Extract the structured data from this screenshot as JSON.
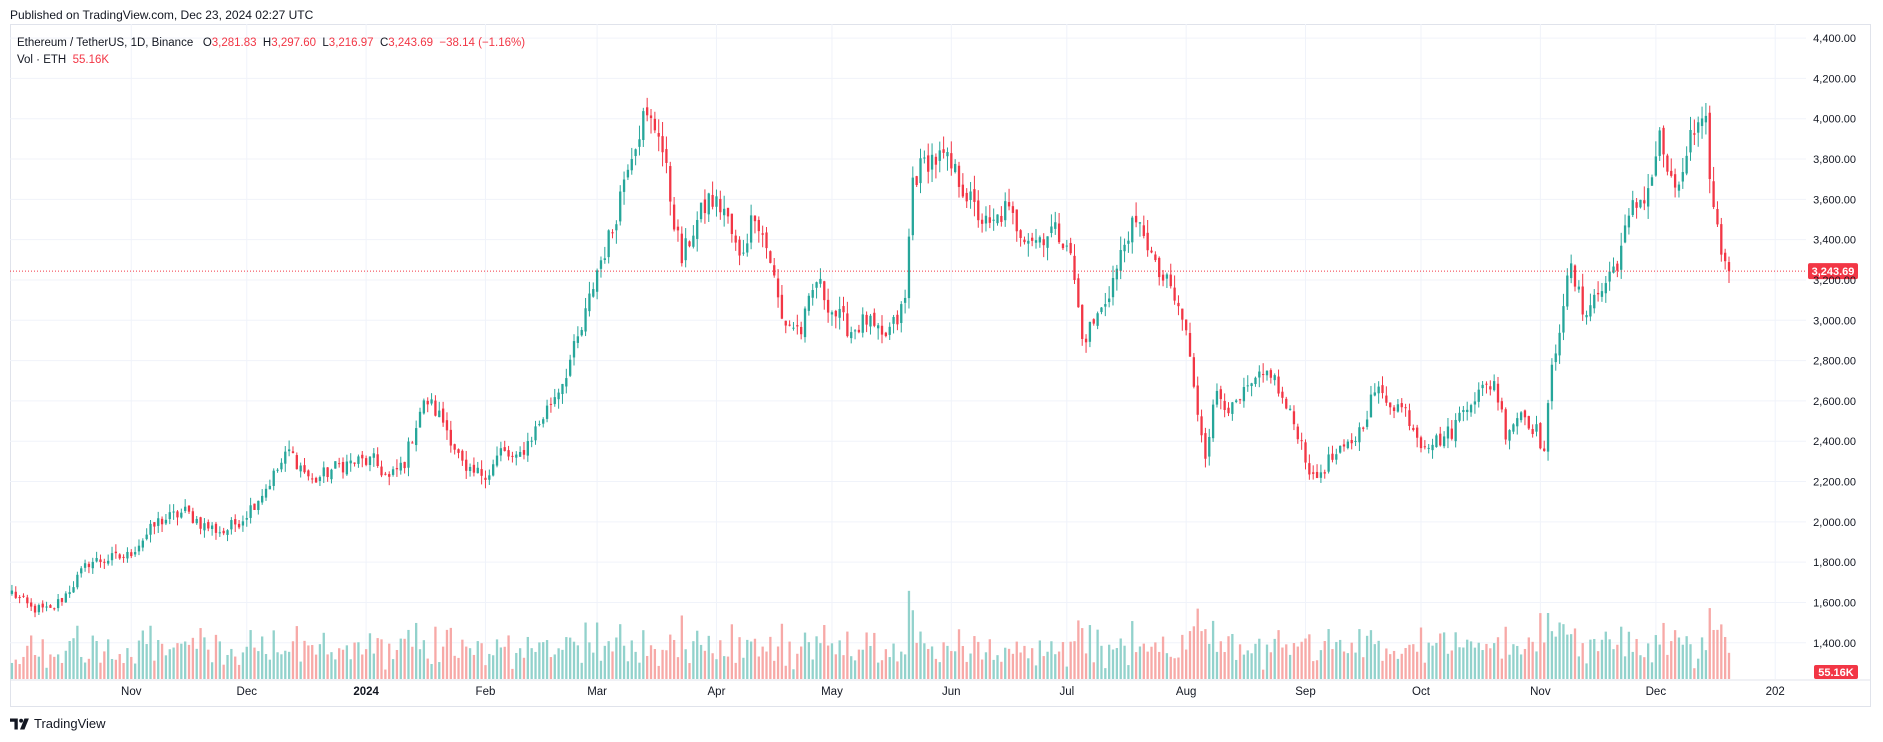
{
  "header": {
    "published": "Published on TradingView.com, Dec 23, 2024 02:27 UTC"
  },
  "legend": {
    "symbol": "Ethereum / TetherUS, 1D, Binance",
    "o_label": "O",
    "o": "3,281.83",
    "h_label": "H",
    "h": "3,297.60",
    "l_label": "L",
    "l": "3,216.97",
    "c_label": "C",
    "c": "3,243.69",
    "change": "−38.14 (−1.16%)",
    "vol_label": "Vol · ETH",
    "vol": "55.16K"
  },
  "footer": {
    "brand": "TradingView",
    "logo_icon": "tradingview-logo-icon"
  },
  "colors": {
    "up": "#26a69a",
    "down": "#f23645",
    "vol_up": "#92d2cc",
    "vol_down": "#f7a9a7",
    "grid": "#f0f3fa",
    "text": "#131722"
  },
  "chart_data": {
    "type": "candlestick",
    "last_price": 3243.69,
    "last_price_label": "3,243.69",
    "last_volume_label": "55.16K",
    "y_ticks": [
      1400,
      1600,
      1800,
      2000,
      2200,
      2400,
      2600,
      2800,
      3000,
      3200,
      3400,
      3600,
      3800,
      4000,
      4200,
      4400
    ],
    "y_tick_labels": [
      "1,400.00",
      "1,600.00",
      "1,800.00",
      "2,000.00",
      "2,200.00",
      "2,400.00",
      "2,600.00",
      "2,800.00",
      "3,000.00",
      "3,200.00",
      "3,400.00",
      "3,600.00",
      "3,800.00",
      "4,000.00",
      "4,200.00",
      "4,400.00"
    ],
    "ylim": [
      1250,
      4450
    ],
    "x_ticks": [
      {
        "label": "Nov",
        "day": 31,
        "bold": false
      },
      {
        "label": "Dec",
        "day": 61,
        "bold": false
      },
      {
        "label": "2024",
        "day": 92,
        "bold": true
      },
      {
        "label": "Feb",
        "day": 123,
        "bold": false
      },
      {
        "label": "Mar",
        "day": 152,
        "bold": false
      },
      {
        "label": "Apr",
        "day": 183,
        "bold": false
      },
      {
        "label": "May",
        "day": 213,
        "bold": false
      },
      {
        "label": "Jun",
        "day": 244,
        "bold": false
      },
      {
        "label": "Jul",
        "day": 274,
        "bold": false
      },
      {
        "label": "Aug",
        "day": 305,
        "bold": false
      },
      {
        "label": "Sep",
        "day": 336,
        "bold": false
      },
      {
        "label": "Oct",
        "day": 366,
        "bold": false
      },
      {
        "label": "Nov",
        "day": 397,
        "bold": false
      },
      {
        "label": "Dec",
        "day": 427,
        "bold": false
      },
      {
        "label": "202",
        "day": 458,
        "bold": false
      }
    ],
    "anchors": [
      [
        0,
        1650
      ],
      [
        5,
        1570
      ],
      [
        10,
        1560
      ],
      [
        14,
        1640
      ],
      [
        20,
        1800
      ],
      [
        30,
        1830
      ],
      [
        38,
        2000
      ],
      [
        45,
        2050
      ],
      [
        50,
        1980
      ],
      [
        55,
        1950
      ],
      [
        60,
        2020
      ],
      [
        66,
        2170
      ],
      [
        72,
        2350
      ],
      [
        78,
        2200
      ],
      [
        85,
        2280
      ],
      [
        90,
        2300
      ],
      [
        94,
        2300
      ],
      [
        98,
        2210
      ],
      [
        102,
        2300
      ],
      [
        106,
        2550
      ],
      [
        108,
        2600
      ],
      [
        112,
        2500
      ],
      [
        114,
        2420
      ],
      [
        118,
        2230
      ],
      [
        124,
        2250
      ],
      [
        127,
        2350
      ],
      [
        131,
        2300
      ],
      [
        137,
        2490
      ],
      [
        143,
        2700
      ],
      [
        148,
        2950
      ],
      [
        152,
        3250
      ],
      [
        156,
        3450
      ],
      [
        160,
        3800
      ],
      [
        164,
        4000
      ],
      [
        168,
        3950
      ],
      [
        172,
        3500
      ],
      [
        174,
        3300
      ],
      [
        177,
        3450
      ],
      [
        181,
        3600
      ],
      [
        185,
        3550
      ],
      [
        189,
        3300
      ],
      [
        193,
        3550
      ],
      [
        197,
        3300
      ],
      [
        200,
        3000
      ],
      [
        205,
        2950
      ],
      [
        209,
        3200
      ],
      [
        213,
        3050
      ],
      [
        218,
        2950
      ],
      [
        222,
        3000
      ],
      [
        226,
        2900
      ],
      [
        230,
        3000
      ],
      [
        232,
        3100
      ],
      [
        234,
        3700
      ],
      [
        238,
        3800
      ],
      [
        242,
        3800
      ],
      [
        246,
        3700
      ],
      [
        250,
        3550
      ],
      [
        254,
        3450
      ],
      [
        258,
        3550
      ],
      [
        262,
        3450
      ],
      [
        266,
        3400
      ],
      [
        270,
        3450
      ],
      [
        274,
        3400
      ],
      [
        276,
        3200
      ],
      [
        278,
        2900
      ],
      [
        283,
        3050
      ],
      [
        287,
        3250
      ],
      [
        290,
        3450
      ],
      [
        294,
        3450
      ],
      [
        297,
        3250
      ],
      [
        301,
        3150
      ],
      [
        305,
        2950
      ],
      [
        307,
        2650
      ],
      [
        310,
        2350
      ],
      [
        313,
        2650
      ],
      [
        317,
        2550
      ],
      [
        321,
        2650
      ],
      [
        324,
        2700
      ],
      [
        327,
        2750
      ],
      [
        330,
        2600
      ],
      [
        334,
        2450
      ],
      [
        338,
        2200
      ],
      [
        342,
        2300
      ],
      [
        346,
        2350
      ],
      [
        350,
        2450
      ],
      [
        354,
        2650
      ],
      [
        358,
        2600
      ],
      [
        362,
        2550
      ],
      [
        366,
        2400
      ],
      [
        370,
        2400
      ],
      [
        374,
        2450
      ],
      [
        378,
        2600
      ],
      [
        382,
        2650
      ],
      [
        385,
        2700
      ],
      [
        388,
        2450
      ],
      [
        392,
        2550
      ],
      [
        396,
        2450
      ],
      [
        398,
        2350
      ],
      [
        400,
        2750
      ],
      [
        403,
        3100
      ],
      [
        405,
        3250
      ],
      [
        408,
        3050
      ],
      [
        413,
        3150
      ],
      [
        417,
        3300
      ],
      [
        421,
        3550
      ],
      [
        425,
        3650
      ],
      [
        428,
        3900
      ],
      [
        432,
        3600
      ],
      [
        436,
        3900
      ],
      [
        440,
        3950
      ],
      [
        442,
        3550
      ],
      [
        444,
        3350
      ],
      [
        446,
        3243.69
      ]
    ],
    "n_days": 447,
    "x_domain_days": [
      -0.5,
      466
    ],
    "volume_scale_max_label": ""
  }
}
